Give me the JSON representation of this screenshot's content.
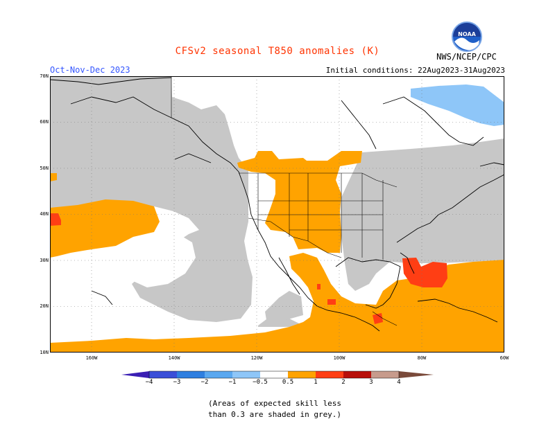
{
  "title": "CFSv2 seasonal T850 anomalies (K)",
  "season": "Oct-Nov-Dec 2023",
  "initial_conditions": "Initial conditions: 22Aug2023-31Aug2023",
  "agency": "NWS/NCEP/CPC",
  "logo_text": "NOAA",
  "lat_labels": [
    "70N",
    "60N",
    "50N",
    "40N",
    "30N",
    "20N",
    "10N"
  ],
  "lon_labels": [
    "160W",
    "140W",
    "120W",
    "100W",
    "80W",
    "60W"
  ],
  "colorbar": {
    "labels": [
      "−4",
      "−3",
      "−2",
      "−1",
      "−0.5",
      "0.5",
      "1",
      "2",
      "3",
      "4"
    ],
    "colors": [
      "#3a1fb4",
      "#3b4fd8",
      "#2f7fe0",
      "#5aa8f0",
      "#8ec6f8",
      "#ffffff",
      "#ffa300",
      "#ff3e14",
      "#b80f0a",
      "#c79b8c",
      "#7a4a3a"
    ]
  },
  "note": [
    "(Areas of expected skill less",
    "than 0.3 are shaded in grey.)"
  ],
  "colors": {
    "grey": "#c7c7c7",
    "orange": "#ffa300",
    "red": "#ff3e14",
    "blue": "#8ec6f8"
  }
}
